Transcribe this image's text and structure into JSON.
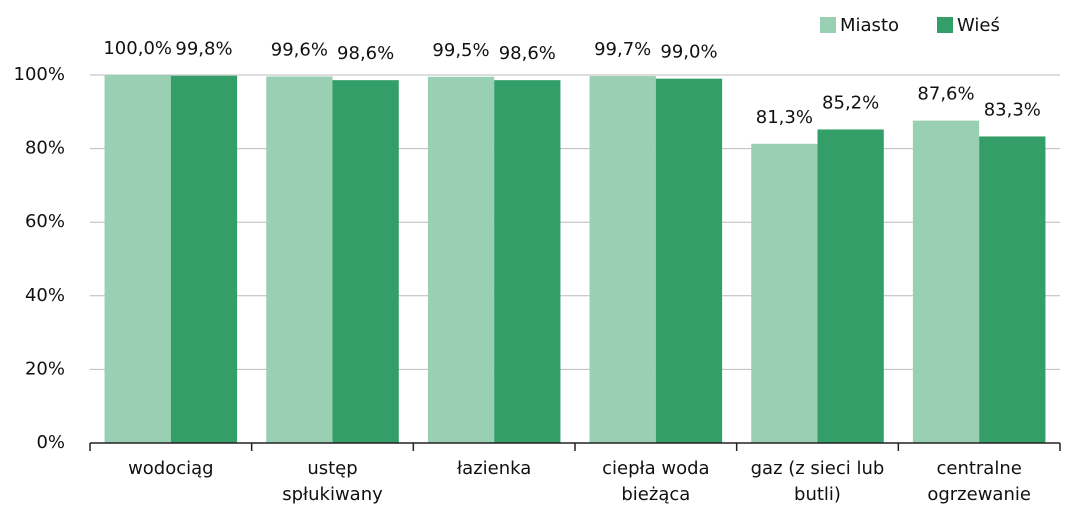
{
  "chart_data": {
    "type": "bar",
    "categories": [
      "wodociąg",
      "ustęp\nspłukiwany",
      "łazienka",
      "ciepła woda\nbieżąca",
      "gaz (z sieci lub\nbutli)",
      "centralne\nogrzewanie"
    ],
    "series": [
      {
        "name": "Miasto",
        "color": "#99cfb3",
        "values": [
          100.0,
          99.6,
          99.5,
          99.7,
          81.3,
          87.6
        ],
        "value_labels": [
          "100,0%",
          "99,6%",
          "99,5%",
          "99,7%",
          "81,3%",
          "87,6%"
        ]
      },
      {
        "name": "Wieś",
        "color": "#339e68",
        "values": [
          99.8,
          98.6,
          98.6,
          99.0,
          85.2,
          83.3
        ],
        "value_labels": [
          "99,8%",
          "98,6%",
          "98,6%",
          "99,0%",
          "85,2%",
          "83,3%"
        ]
      }
    ],
    "ylim": [
      0,
      100
    ],
    "yticks": [
      {
        "value": 0,
        "label": "0%"
      },
      {
        "value": 20,
        "label": "20%"
      },
      {
        "value": 40,
        "label": "40%"
      },
      {
        "value": 60,
        "label": "60%"
      },
      {
        "value": 80,
        "label": "80%"
      },
      {
        "value": 100,
        "label": "100%"
      }
    ],
    "grid": true,
    "legend": "top-right"
  }
}
